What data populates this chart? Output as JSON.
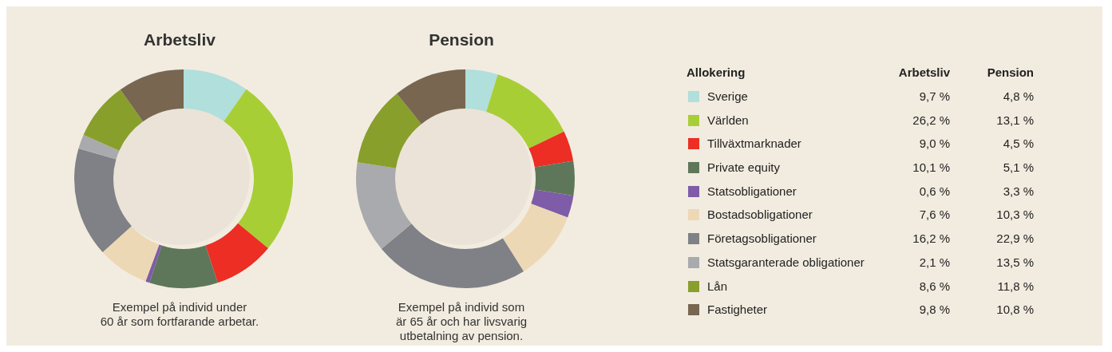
{
  "chart_data": {
    "type": "donut",
    "legend": "right",
    "legend_title": "Allokering",
    "categories": [
      "Sverige",
      "Världen",
      "Tillväxtmarknader",
      "Private equity",
      "Statsobligationer",
      "Bostadsobligationer",
      "Företagsobligationer",
      "Statsgaranterade obligationer",
      "Lån",
      "Fastigheter"
    ],
    "colors": [
      "#b0dfdc",
      "#a8ce36",
      "#ec2e24",
      "#5e775a",
      "#7e5ca8",
      "#edd8b6",
      "#808186",
      "#a9aaad",
      "#889f2c",
      "#786651"
    ],
    "series": [
      {
        "name": "Arbetsliv",
        "values": [
          9.7,
          26.2,
          9.0,
          10.1,
          0.6,
          7.6,
          16.2,
          2.1,
          8.6,
          9.8
        ],
        "value_labels": [
          "9,7 %",
          "26,2 %",
          "9,0 %",
          "10,1 %",
          "0,6 %",
          "7,6 %",
          "16,2 %",
          "2,1 %",
          "8,6 %",
          "9,8 %"
        ]
      },
      {
        "name": "Pension",
        "values": [
          4.8,
          13.1,
          4.5,
          5.1,
          3.3,
          10.3,
          22.9,
          13.5,
          11.8,
          10.8
        ],
        "value_labels": [
          "4,8 %",
          "13,1 %",
          "4,5 %",
          "5,1 %",
          "3,3 %",
          "10,3 %",
          "22,9 %",
          "13,5 %",
          "11,8 %",
          "10,8 %"
        ]
      }
    ],
    "annotations": [
      "Exempel på individ under\n60 år som fortfarande arbetar.",
      "Exempel på individ som\när 65 år och har livsvarig\nutbetalning av pension."
    ]
  }
}
